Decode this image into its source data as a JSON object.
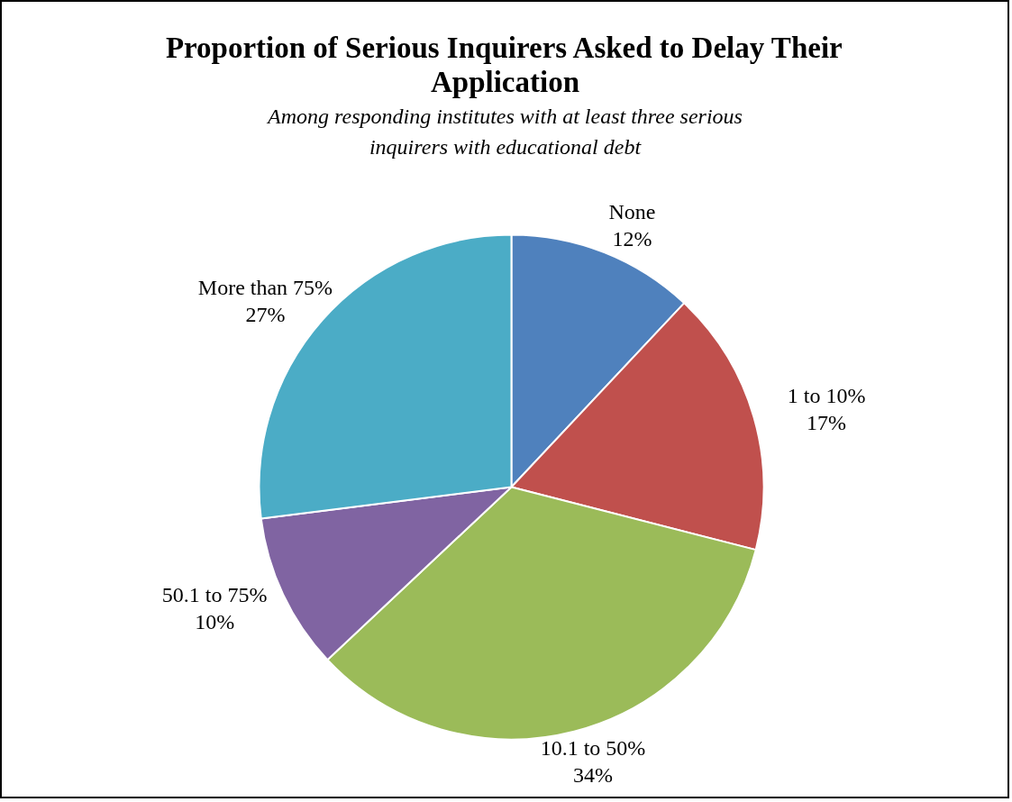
{
  "chart_data": {
    "type": "pie",
    "title": "Proportion of Serious Inquirers Asked to Delay Their Application",
    "subtitle": "Among responding institutes with at least three serious inquirers with educational debt",
    "categories": [
      "None",
      "1 to 10%",
      "10.1 to 50%",
      "50.1 to 75%",
      "More than 75%"
    ],
    "values": [
      12,
      17,
      34,
      10,
      27
    ],
    "value_labels": [
      "12%",
      "17%",
      "34%",
      "10%",
      "27%"
    ],
    "colors": [
      "#4f81bd",
      "#c0504d",
      "#9bbb59",
      "#8064a2",
      "#4bacc6"
    ]
  }
}
